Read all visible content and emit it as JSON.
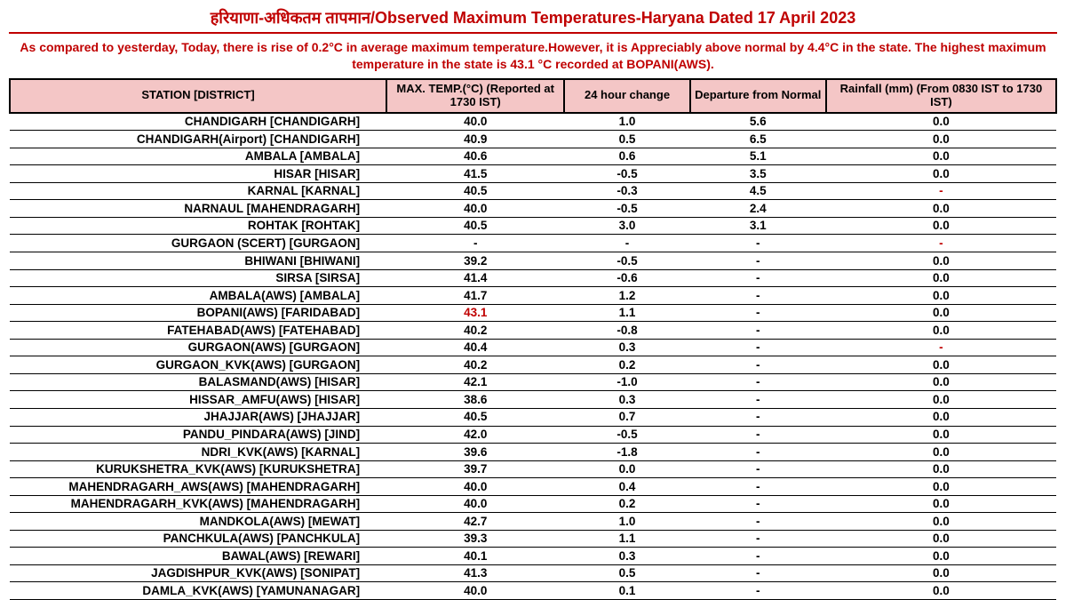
{
  "title": "हरियाणा-अधिकतम तापमान/Observed Maximum Temperatures-Haryana Dated 17 April 2023",
  "summary": "As compared to yesterday, Today, there is rise of 0.2°C in average maximum temperature.However, it is Appreciably above normal by 4.4°C in the state. The highest maximum temperature in the state is 43.1 °C recorded at BOPANI(AWS).",
  "table": {
    "columns": [
      "STATION  [DISTRICT]",
      "MAX. TEMP.(°C) (Reported at 1730 IST)",
      "24 hour change",
      "Departure from Normal",
      "Rainfall (mm) (From 0830 IST to 1730 IST)"
    ],
    "header_bg": "#f4c6c6",
    "rows": [
      {
        "station": "CHANDIGARH  [CHANDIGARH]",
        "max": "40.0",
        "chg": "1.0",
        "dep": "5.6",
        "rain": "0.0"
      },
      {
        "station": "CHANDIGARH(Airport)  [CHANDIGARH]",
        "max": "40.9",
        "chg": "0.5",
        "dep": "6.5",
        "rain": "0.0"
      },
      {
        "station": "AMBALA  [AMBALA]",
        "max": "40.6",
        "chg": "0.6",
        "dep": "5.1",
        "rain": "0.0"
      },
      {
        "station": "HISAR  [HISAR]",
        "max": "41.5",
        "chg": "-0.5",
        "dep": "3.5",
        "rain": "0.0"
      },
      {
        "station": "KARNAL  [KARNAL]",
        "max": "40.5",
        "chg": "-0.3",
        "dep": "4.5",
        "rain": "-",
        "rain_red": true
      },
      {
        "station": "NARNAUL  [MAHENDRAGARH]",
        "max": "40.0",
        "chg": "-0.5",
        "dep": "2.4",
        "rain": "0.0"
      },
      {
        "station": "ROHTAK  [ROHTAK]",
        "max": "40.5",
        "chg": "3.0",
        "dep": "3.1",
        "rain": "0.0"
      },
      {
        "station": "GURGAON (SCERT)  [GURGAON]",
        "max": "-",
        "chg": "-",
        "dep": "-",
        "rain": "-",
        "rain_red": true
      },
      {
        "station": "BHIWANI  [BHIWANI]",
        "max": "39.2",
        "chg": "-0.5",
        "dep": "-",
        "rain": "0.0"
      },
      {
        "station": "SIRSA  [SIRSA]",
        "max": "41.4",
        "chg": "-0.6",
        "dep": "-",
        "rain": "0.0"
      },
      {
        "station": "AMBALA(AWS)  [AMBALA]",
        "max": "41.7",
        "chg": "1.2",
        "dep": "-",
        "rain": "0.0"
      },
      {
        "station": "BOPANI(AWS)  [FARIDABAD]",
        "max": "43.1",
        "max_red": true,
        "chg": "1.1",
        "dep": "-",
        "rain": "0.0"
      },
      {
        "station": "FATEHABAD(AWS)  [FATEHABAD]",
        "max": "40.2",
        "chg": "-0.8",
        "dep": "-",
        "rain": "0.0"
      },
      {
        "station": "GURGAON(AWS)  [GURGAON]",
        "max": "40.4",
        "chg": "0.3",
        "dep": "-",
        "rain": "-",
        "rain_red": true
      },
      {
        "station": "GURGAON_KVK(AWS)  [GURGAON]",
        "max": "40.2",
        "chg": "0.2",
        "dep": "-",
        "rain": "0.0"
      },
      {
        "station": "BALASMAND(AWS)  [HISAR]",
        "max": "42.1",
        "chg": "-1.0",
        "dep": "-",
        "rain": "0.0"
      },
      {
        "station": "HISSAR_AMFU(AWS)  [HISAR]",
        "max": "38.6",
        "chg": "0.3",
        "dep": "-",
        "rain": "0.0"
      },
      {
        "station": "JHAJJAR(AWS)  [JHAJJAR]",
        "max": "40.5",
        "chg": "0.7",
        "dep": "-",
        "rain": "0.0"
      },
      {
        "station": "PANDU_PINDARA(AWS)  [JIND]",
        "max": "42.0",
        "chg": "-0.5",
        "dep": "-",
        "rain": "0.0"
      },
      {
        "station": "NDRI_KVK(AWS)  [KARNAL]",
        "max": "39.6",
        "chg": "-1.8",
        "dep": "-",
        "rain": "0.0"
      },
      {
        "station": "KURUKSHETRA_KVK(AWS)  [KURUKSHETRA]",
        "max": "39.7",
        "chg": "0.0",
        "dep": "-",
        "rain": "0.0"
      },
      {
        "station": "MAHENDRAGARH_AWS(AWS)  [MAHENDRAGARH]",
        "max": "40.0",
        "chg": "0.4",
        "dep": "-",
        "rain": "0.0"
      },
      {
        "station": "MAHENDRAGARH_KVK(AWS)  [MAHENDRAGARH]",
        "max": "40.0",
        "chg": "0.2",
        "dep": "-",
        "rain": "0.0"
      },
      {
        "station": "MANDKOLA(AWS)  [MEWAT]",
        "max": "42.7",
        "chg": "1.0",
        "dep": "-",
        "rain": "0.0"
      },
      {
        "station": "PANCHKULA(AWS)  [PANCHKULA]",
        "max": "39.3",
        "chg": "1.1",
        "dep": "-",
        "rain": "0.0"
      },
      {
        "station": "BAWAL(AWS)  [REWARI]",
        "max": "40.1",
        "chg": "0.3",
        "dep": "-",
        "rain": "0.0"
      },
      {
        "station": "JAGDISHPUR_KVK(AWS)  [SONIPAT]",
        "max": "41.3",
        "chg": "0.5",
        "dep": "-",
        "rain": "0.0"
      },
      {
        "station": "DAMLA_KVK(AWS)  [YAMUNANAGAR]",
        "max": "40.0",
        "chg": "0.1",
        "dep": "-",
        "rain": "0.0"
      }
    ]
  },
  "colors": {
    "accent": "#c00000",
    "border": "#000000",
    "bg": "#ffffff"
  }
}
